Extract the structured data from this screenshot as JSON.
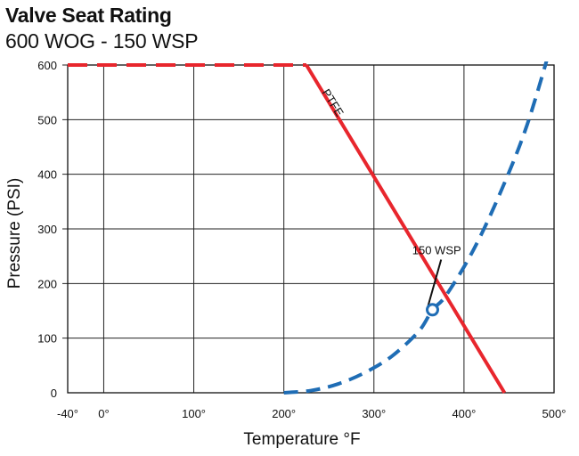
{
  "chart_data": {
    "type": "line",
    "title": "Valve Seat Rating",
    "subtitle": "600 WOG - 150 WSP",
    "xlabel": "Temperature °F",
    "ylabel": "Pressure (PSI)",
    "xlim": [
      -40,
      500
    ],
    "ylim": [
      0,
      600
    ],
    "x_ticks": [
      -40,
      0,
      100,
      200,
      300,
      400,
      500
    ],
    "x_tick_labels": [
      "-40°",
      "0°",
      "100°",
      "200°",
      "300°",
      "400°",
      "500°"
    ],
    "y_ticks": [
      0,
      100,
      200,
      300,
      400,
      500,
      600
    ],
    "y_tick_labels": [
      "0",
      "100",
      "200",
      "300",
      "400",
      "500",
      "600"
    ],
    "grid": true,
    "series": [
      {
        "name": "",
        "style": "dashed",
        "color": "#e8262d",
        "x": [
          -40,
          225
        ],
        "y": [
          600,
          600
        ]
      },
      {
        "name": "PTFE",
        "style": "solid",
        "color": "#e8262d",
        "x": [
          225,
          445
        ],
        "y": [
          600,
          0
        ]
      },
      {
        "name": "",
        "style": "dashed",
        "color": "#1f6db5",
        "x": [
          200,
          230,
          260,
          290,
          320,
          350,
          365,
          380,
          410,
          440,
          470,
          500
        ],
        "y": [
          0,
          4,
          16,
          37,
          67,
          113,
          152,
          178,
          260,
          365,
          490,
          655
        ]
      }
    ],
    "annotations": [
      {
        "text": "PTFE",
        "x": 240,
        "y": 560
      },
      {
        "text": "150 WSP",
        "x": 340,
        "y": 260,
        "marker": {
          "x": 365,
          "y": 152
        }
      }
    ]
  }
}
